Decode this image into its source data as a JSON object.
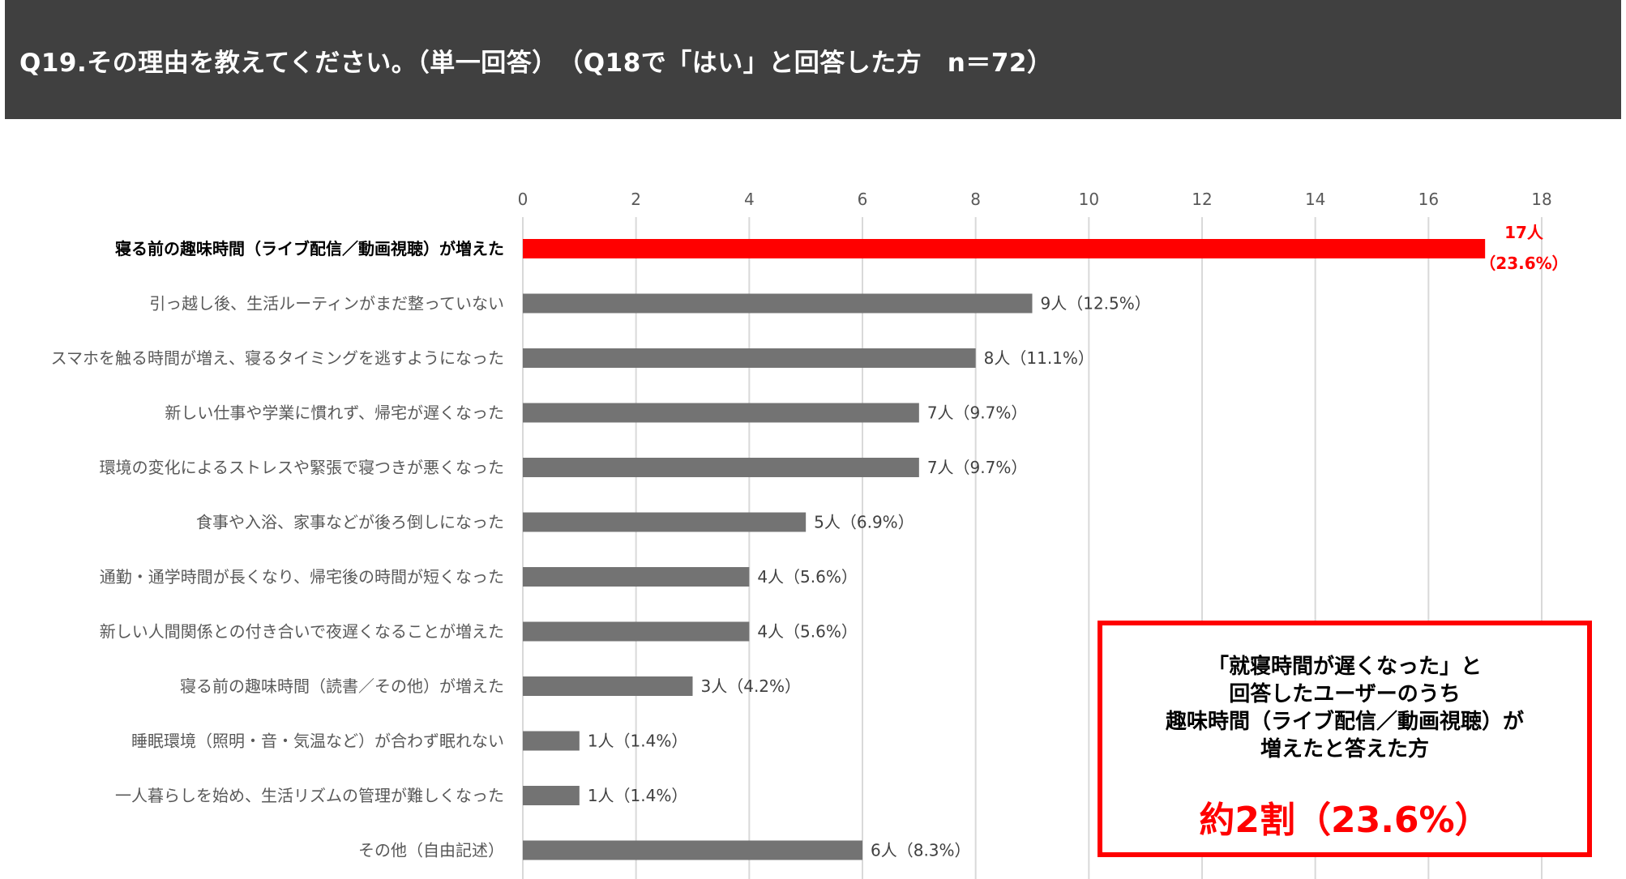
{
  "header": {
    "title": "Q19.その理由を教えてください。（単一回答）　（Q18で「はい」と回答した方　n＝72）"
  },
  "chart_data": {
    "type": "bar",
    "orientation": "horizontal",
    "xlim": [
      0,
      18
    ],
    "ticks": [
      "0",
      "2",
      "4",
      "6",
      "8",
      "10",
      "12",
      "14",
      "16",
      "18"
    ],
    "grid": true,
    "highlight_color": "#ff0000",
    "bar_color": "#737373",
    "categories": [
      "寝る前の趣味時間（ライブ配信／動画視聴）が増えた",
      "引っ越し後、生活ルーティンがまだ整っていない",
      "スマホを触る時間が増え、寝るタイミングを逃すようになった",
      "新しい仕事や学業に慣れず、帰宅が遅くなった",
      "環境の変化によるストレスや緊張で寝つきが悪くなった",
      "食事や入浴、家事などが後ろ倒しになった",
      "通勤・通学時間が長くなり、帰宅後の時間が短くなった",
      "新しい人間関係との付き合いで夜遅くなることが増えた",
      "寝る前の趣味時間（読書／その他）が増えた",
      "睡眠環境（照明・音・気温など）が合わず眠れない",
      "一人暮らしを始め、生活リズムの管理が難しくなった",
      "その他（自由記述）"
    ],
    "values": [
      17,
      9,
      8,
      7,
      7,
      5,
      4,
      4,
      3,
      1,
      1,
      6
    ],
    "data_labels": [
      "17人\n（23.6%）",
      "9人（12.5%）",
      "8人（11.1%）",
      "7人（9.7%）",
      "7人（9.7%）",
      "5人（6.9%）",
      "4人（5.6%）",
      "4人（5.6%）",
      "3人（4.2%）",
      "1人（1.4%）",
      "1人（1.4%）",
      "6人（8.3%）"
    ],
    "highlight_index": 0
  },
  "callout": {
    "lines": [
      "「就寝時間が遅くなった」と",
      "回答したユーザーのうち",
      "趣味時間（ライブ配信／動画視聴）が",
      "増えたと答えた方"
    ],
    "highlight": "約2割（23.6%）"
  }
}
